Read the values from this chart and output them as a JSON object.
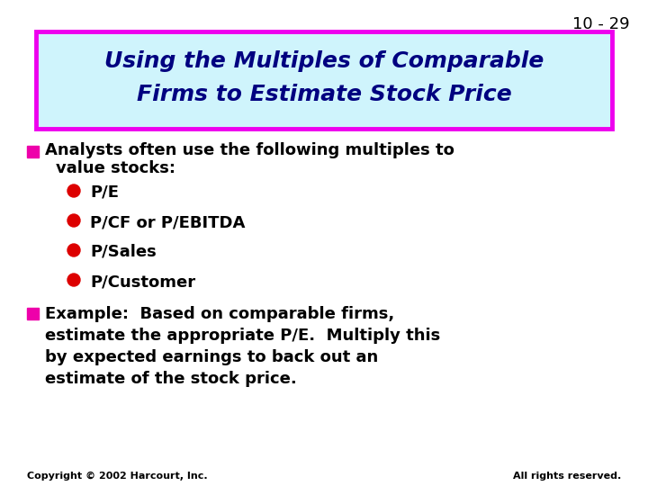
{
  "slide_number": "10 - 29",
  "title_line1": "Using the Multiples of Comparable",
  "title_line2": "Firms to Estimate Stock Price",
  "title_bg_color": "#cff4fc",
  "title_border_color": "#ee00ee",
  "title_text_color": "#000080",
  "slide_bg_color": "#ffffff",
  "bullet1_square_color": "#ee00aa",
  "sub_bullets": [
    "P/E",
    "P/CF or P/EBITDA",
    "P/Sales",
    "P/Customer"
  ],
  "sub_bullet_dot_color": "#dd0000",
  "bullet2_square_color": "#ee00aa",
  "footer_left": "Copyright © 2002 Harcourt, Inc.",
  "footer_right": "All rights reserved.",
  "footer_text_color": "#000000",
  "slide_num_color": "#000000",
  "title_fontsize": 18,
  "body_fontsize": 13,
  "footer_fontsize": 8
}
